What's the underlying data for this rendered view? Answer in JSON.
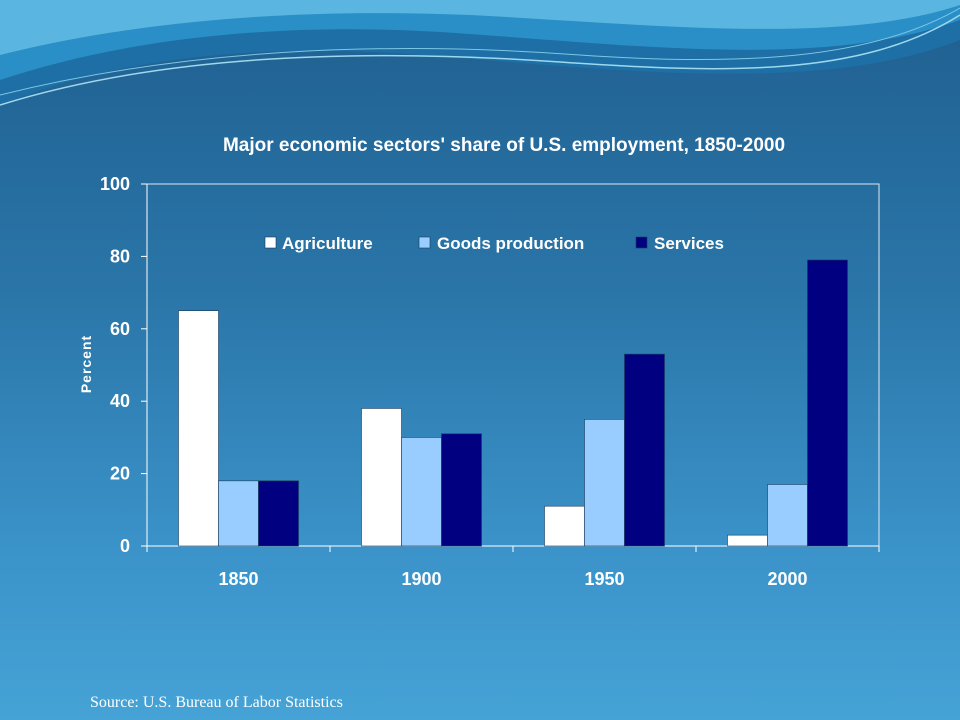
{
  "chart_data": {
    "type": "bar",
    "title": "Major economic sectors' share of U.S. employment, 1850-2000",
    "ylabel": "Percent",
    "xlabel": "",
    "categories": [
      "1850",
      "1900",
      "1950",
      "2000"
    ],
    "series": [
      {
        "name": "Agriculture",
        "color": "#ffffff",
        "values": [
          65,
          38,
          11,
          3
        ]
      },
      {
        "name": "Goods production",
        "color": "#99ccff",
        "values": [
          18,
          30,
          35,
          17
        ]
      },
      {
        "name": "Services",
        "color": "#000080",
        "values": [
          18,
          31,
          53,
          79
        ]
      }
    ],
    "ylim": [
      0,
      100
    ],
    "yticks": [
      0,
      20,
      40,
      60,
      80,
      100
    ],
    "grid": false,
    "legend_position": "top"
  },
  "source_text": "Source:  U.S. Bureau of Labor Statistics"
}
